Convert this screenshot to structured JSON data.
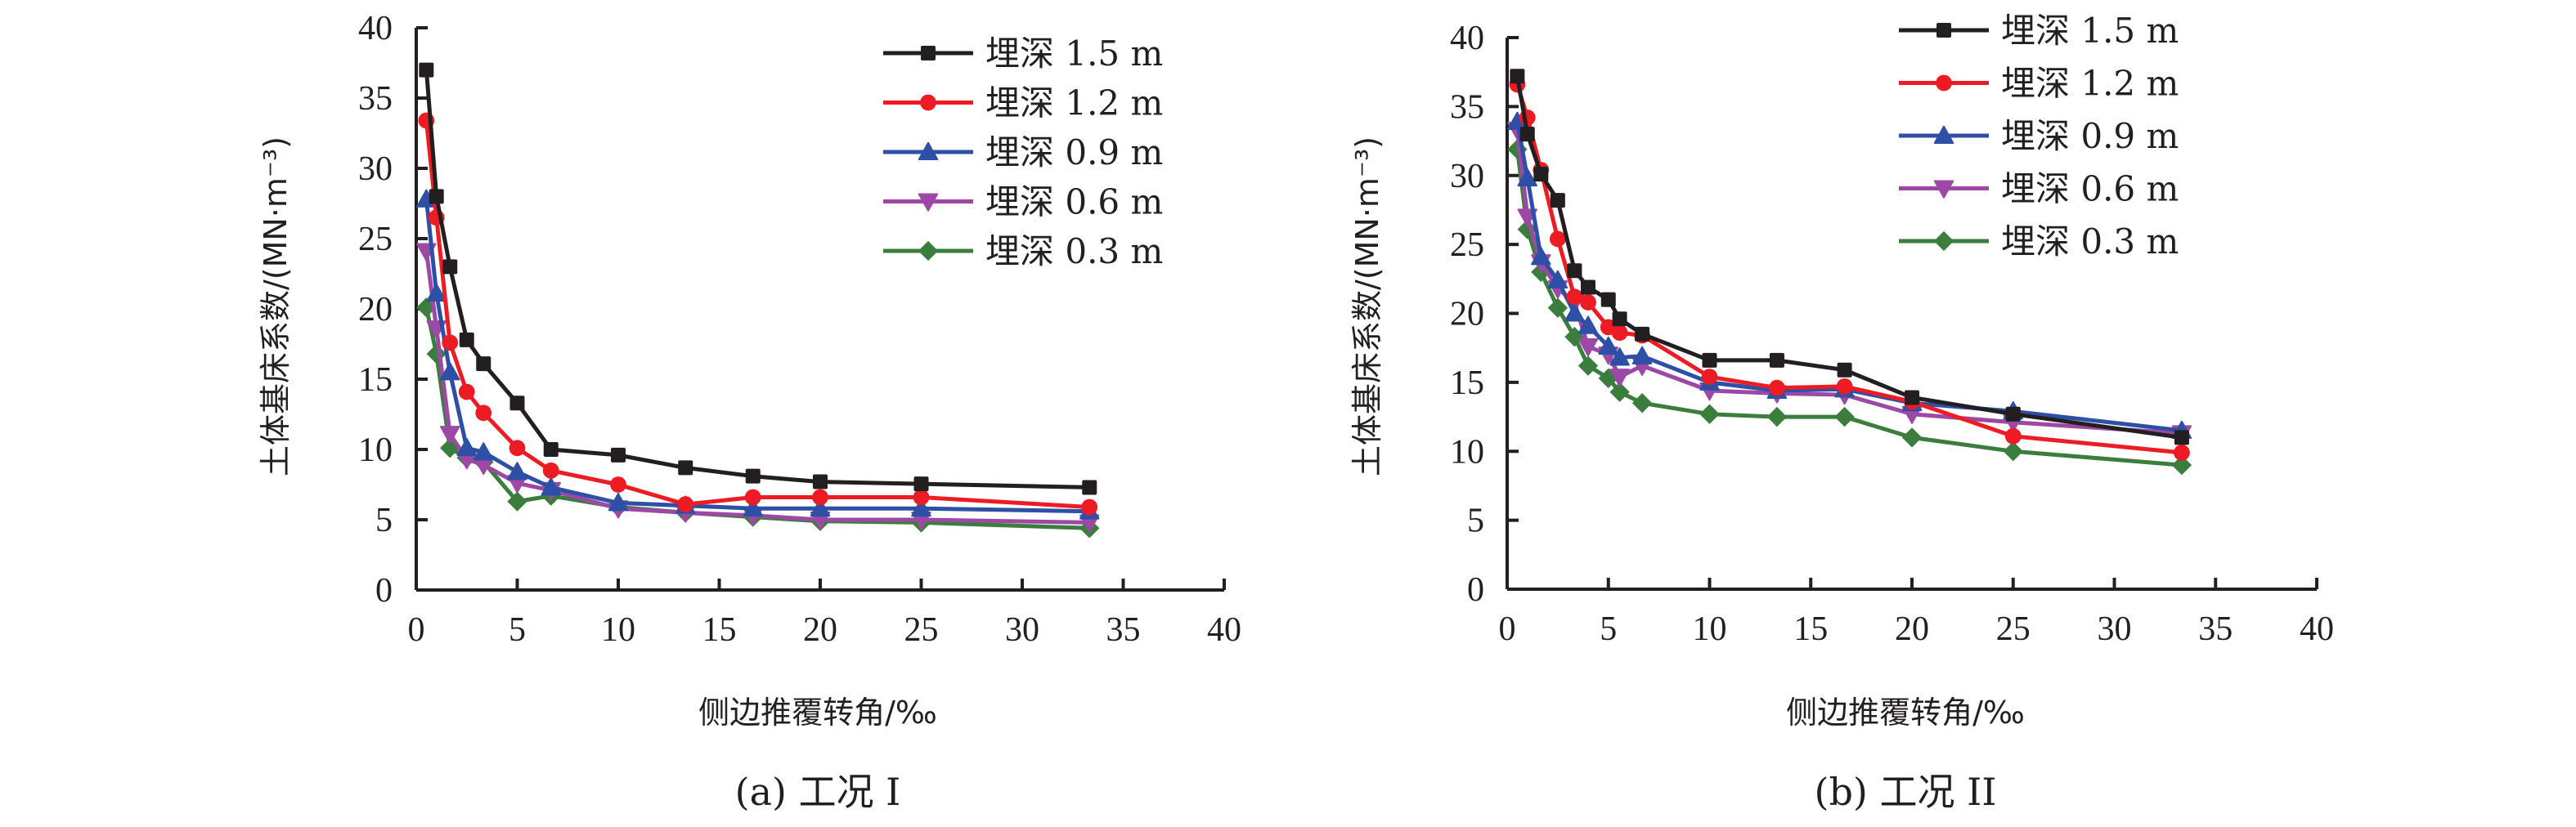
{
  "chart_data": [
    {
      "type": "line",
      "title": "",
      "caption": "(a) 工况 I",
      "xlabel": "侧边推覆转角/‰",
      "ylabel": "土体基床系数/(MN·m⁻³)",
      "xlim": [
        0,
        40
      ],
      "ylim": [
        0,
        40
      ],
      "xticks": [
        "0",
        "5",
        "10",
        "15",
        "20",
        "25",
        "30",
        "35",
        "40"
      ],
      "yticks": [
        "0",
        "5",
        "10",
        "15",
        "20",
        "25",
        "30",
        "35",
        "40"
      ],
      "grid": false,
      "legend_position": "top-right",
      "x": [
        0.5,
        1.0,
        1.67,
        2.5,
        3.33,
        5.0,
        6.67,
        10.0,
        13.33,
        16.67,
        20.0,
        25.0,
        33.33
      ],
      "series": [
        {
          "name": "埋深 1.5 m",
          "color": "#231f20",
          "marker": "square",
          "values": [
            37.0,
            28.0,
            23.0,
            17.8,
            16.1,
            13.3,
            10.0,
            9.6,
            8.7,
            8.1,
            7.7,
            7.55,
            7.3
          ]
        },
        {
          "name": "埋深 1.2 m",
          "color": "#ed1c24",
          "marker": "circle",
          "values": [
            33.4,
            26.5,
            17.6,
            14.1,
            12.6,
            10.1,
            8.5,
            7.5,
            6.1,
            6.6,
            6.6,
            6.6,
            5.9
          ]
        },
        {
          "name": "埋深 0.9 m",
          "color": "#2e4fa6",
          "marker": "triangle-up",
          "values": [
            27.8,
            21.1,
            15.5,
            10.1,
            9.8,
            8.4,
            7.3,
            6.2,
            6.0,
            5.8,
            5.8,
            5.8,
            5.6
          ]
        },
        {
          "name": "埋深 0.6 m",
          "color": "#9e48a6",
          "marker": "triangle-down",
          "values": [
            24.1,
            18.6,
            11.1,
            9.3,
            8.9,
            7.6,
            7.1,
            5.8,
            5.5,
            5.3,
            5.0,
            5.0,
            4.8
          ]
        },
        {
          "name": "埋深 0.3 m",
          "color": "#3a7d3c",
          "marker": "diamond",
          "values": [
            20.1,
            16.8,
            10.1,
            9.4,
            9.1,
            6.3,
            6.7,
            5.9,
            5.5,
            5.2,
            4.9,
            4.8,
            4.4
          ]
        }
      ]
    },
    {
      "type": "line",
      "title": "",
      "caption": "(b) 工况 II",
      "xlabel": "侧边推覆转角/‰",
      "ylabel": "土体基床系数/(MN·m⁻³)",
      "xlim": [
        0,
        40
      ],
      "ylim": [
        0,
        40
      ],
      "xticks": [
        "0",
        "5",
        "10",
        "15",
        "20",
        "25",
        "30",
        "35",
        "40"
      ],
      "yticks": [
        "0",
        "5",
        "10",
        "15",
        "20",
        "25",
        "30",
        "35",
        "40"
      ],
      "grid": false,
      "legend_position": "top-right",
      "x": [
        0.5,
        1.0,
        1.67,
        2.5,
        3.33,
        4.0,
        5.0,
        5.56,
        6.67,
        10.0,
        13.33,
        16.67,
        20.0,
        25.0,
        33.33
      ],
      "series": [
        {
          "name": "埋深 1.5 m",
          "color": "#231f20",
          "marker": "square",
          "values": [
            37.2,
            33.0,
            30.1,
            28.2,
            23.1,
            21.9,
            21.0,
            19.6,
            18.5,
            16.6,
            16.6,
            15.9,
            13.9,
            12.7,
            11.0
          ]
        },
        {
          "name": "埋深 1.2 m",
          "color": "#ed1c24",
          "marker": "circle",
          "values": [
            36.6,
            34.2,
            30.4,
            25.4,
            21.2,
            20.8,
            19.0,
            18.6,
            18.4,
            15.4,
            14.6,
            14.7,
            13.6,
            11.1,
            9.9
          ]
        },
        {
          "name": "埋深 0.9 m",
          "color": "#2e4fa6",
          "marker": "triangle-up",
          "values": [
            33.9,
            29.8,
            24.1,
            22.4,
            20.0,
            19.1,
            17.6,
            16.8,
            16.9,
            15.0,
            14.4,
            14.5,
            13.5,
            12.9,
            11.5
          ]
        },
        {
          "name": "埋深 0.6 m",
          "color": "#9e48a6",
          "marker": "triangle-down",
          "values": [
            33.3,
            27.0,
            23.7,
            21.8,
            20.8,
            17.6,
            17.0,
            15.4,
            16.2,
            14.4,
            14.2,
            14.1,
            12.7,
            12.1,
            11.3
          ]
        },
        {
          "name": "埋深 0.3 m",
          "color": "#3a7d3c",
          "marker": "diamond",
          "values": [
            31.9,
            26.1,
            23.0,
            20.4,
            18.3,
            16.2,
            15.3,
            14.3,
            13.5,
            12.7,
            12.5,
            12.5,
            11.0,
            10.0,
            9.0
          ]
        }
      ]
    }
  ]
}
